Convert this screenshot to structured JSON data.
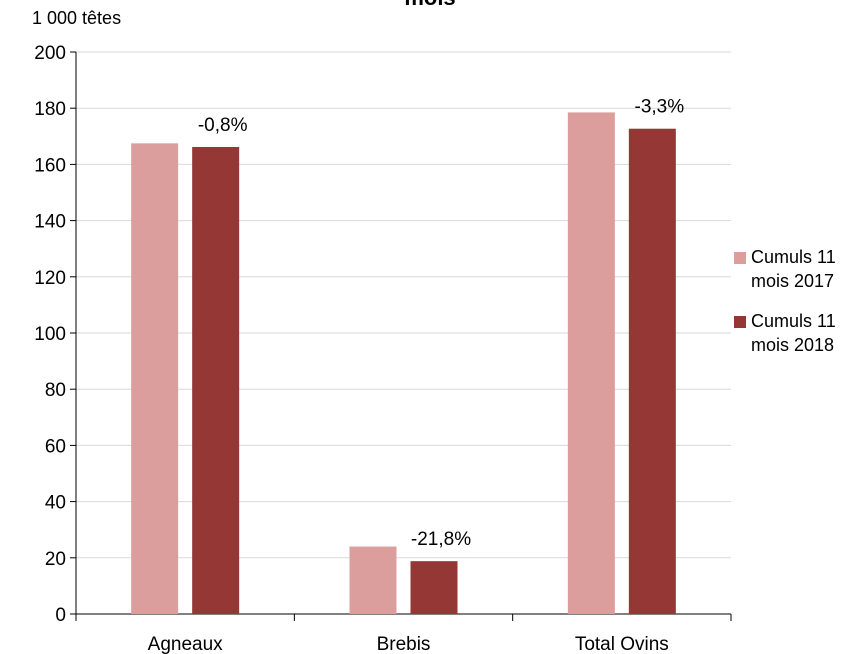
{
  "chart_data": {
    "type": "bar",
    "title": "mois",
    "unit_label": "1 000 têtes",
    "categories": [
      "Agneaux",
      "Brebis",
      "Total Ovins"
    ],
    "series": [
      {
        "name": "Cumuls 11 mois 2017",
        "values": [
          167.5,
          24.0,
          178.5
        ],
        "color": "#dc9e9d"
      },
      {
        "name": "Cumuls 11 mois 2018",
        "values": [
          166.2,
          18.8,
          172.7
        ],
        "color": "#953735"
      }
    ],
    "annotations": [
      "-0,8%",
      "-21,8%",
      "-3,3%"
    ],
    "ylim": [
      0,
      200
    ],
    "yticks": [
      0,
      20,
      40,
      60,
      80,
      100,
      120,
      140,
      160,
      180,
      200
    ],
    "grid": true,
    "legend_position": "right"
  }
}
